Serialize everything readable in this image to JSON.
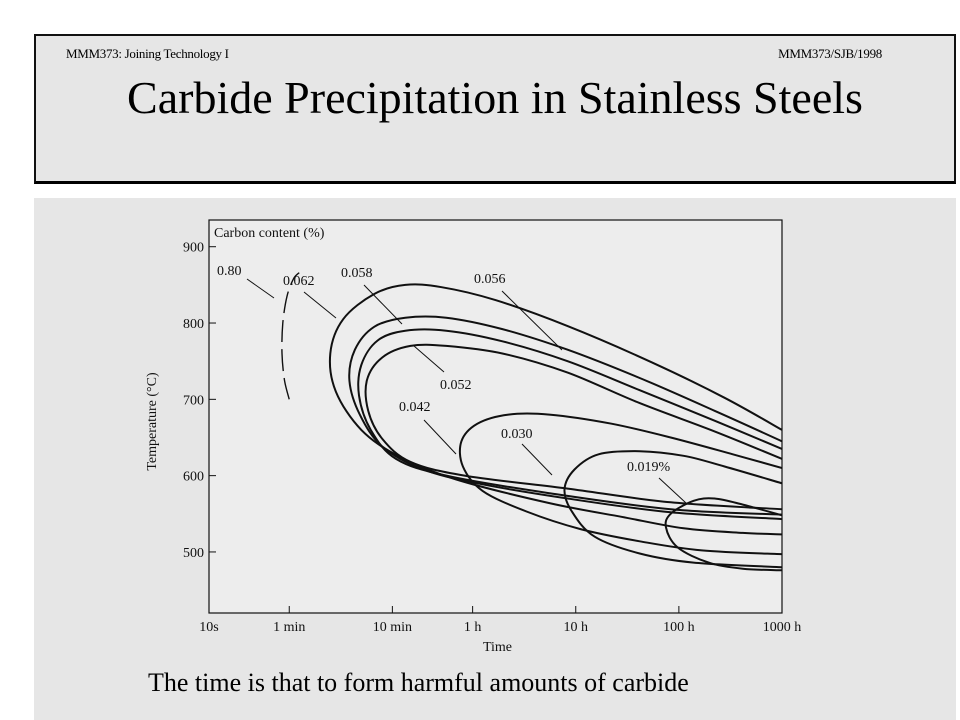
{
  "header": {
    "course_code": "MMM373: Joining Technology I",
    "slide_ref": "MMM373/SJB/1998",
    "title": "Carbide Precipitation in Stainless Steels"
  },
  "caption": "The time is that to form harmful amounts of carbide",
  "colors": {
    "panel_bg": "#e6e6e6",
    "plot_bg": "#ededed",
    "ink": "#111111"
  },
  "chart_data": {
    "type": "line",
    "title": "",
    "legend_title": "Carbon content (%)",
    "xlabel": "Time",
    "ylabel": "Temperature (°C)",
    "x_scale": "log",
    "x_unit": "seconds",
    "xlim": [
      10,
      3600000
    ],
    "ylim": [
      420,
      935
    ],
    "grid": false,
    "xticks": [
      {
        "value": 10,
        "label": "10s"
      },
      {
        "value": 60,
        "label": "1 min"
      },
      {
        "value": 600,
        "label": "10 min"
      },
      {
        "value": 3600,
        "label": "1 h"
      },
      {
        "value": 36000,
        "label": "10 h"
      },
      {
        "value": 360000,
        "label": "100 h"
      },
      {
        "value": 3600000,
        "label": "1000 h"
      }
    ],
    "yticks": [
      500,
      600,
      700,
      800,
      900
    ],
    "series": [
      {
        "name": "0.80",
        "style": "dashed",
        "points": [
          [
            60,
            700
          ],
          [
            54,
            725
          ],
          [
            51,
            760
          ],
          [
            52,
            800
          ],
          [
            57,
            835
          ],
          [
            66,
            858
          ],
          [
            75,
            866
          ]
        ]
      },
      {
        "name": "0.062",
        "points": [
          [
            3600000,
            660
          ],
          [
            1000000,
            702
          ],
          [
            200000,
            748
          ],
          [
            30000,
            796
          ],
          [
            6000,
            830
          ],
          [
            1800,
            847
          ],
          [
            800,
            850
          ],
          [
            400,
            838
          ],
          [
            200,
            805
          ],
          [
            150,
            760
          ],
          [
            170,
            710
          ],
          [
            300,
            660
          ],
          [
            700,
            625
          ],
          [
            2500,
            595
          ],
          [
            20000,
            564
          ],
          [
            100000,
            546
          ],
          [
            400000,
            531
          ],
          [
            1500000,
            525
          ],
          [
            3600000,
            523
          ]
        ]
      },
      {
        "name": "0.058",
        "points": [
          [
            3600000,
            645
          ],
          [
            800000,
            685
          ],
          [
            150000,
            728
          ],
          [
            30000,
            765
          ],
          [
            7000,
            792
          ],
          [
            2000,
            807
          ],
          [
            800,
            807
          ],
          [
            400,
            795
          ],
          [
            260,
            765
          ],
          [
            230,
            725
          ],
          [
            290,
            680
          ],
          [
            480,
            638
          ],
          [
            1200,
            608
          ],
          [
            4000,
            590
          ],
          [
            30000,
            570
          ],
          [
            300000,
            552
          ],
          [
            3600000,
            543
          ]
        ]
      },
      {
        "name": "0.056",
        "points": [
          [
            3600000,
            635
          ],
          [
            800000,
            672
          ],
          [
            150000,
            712
          ],
          [
            30000,
            750
          ],
          [
            7000,
            776
          ],
          [
            2000,
            790
          ],
          [
            800,
            790
          ],
          [
            430,
            777
          ],
          [
            300,
            745
          ],
          [
            285,
            705
          ],
          [
            370,
            660
          ],
          [
            650,
            622
          ],
          [
            2000,
            600
          ],
          [
            20000,
            577
          ],
          [
            300000,
            556
          ],
          [
            3600000,
            549
          ]
        ]
      },
      {
        "name": "0.052",
        "points": [
          [
            3600000,
            622
          ],
          [
            800000,
            658
          ],
          [
            150000,
            695
          ],
          [
            30000,
            735
          ],
          [
            7000,
            760
          ],
          [
            2000,
            770
          ],
          [
            900,
            770
          ],
          [
            480,
            755
          ],
          [
            340,
            725
          ],
          [
            350,
            685
          ],
          [
            480,
            648
          ],
          [
            900,
            618
          ],
          [
            3000,
            600
          ],
          [
            30000,
            583
          ],
          [
            300000,
            565
          ],
          [
            3600000,
            556
          ]
        ]
      },
      {
        "name": "0.042",
        "points": [
          [
            3600000,
            610
          ],
          [
            1200000,
            628
          ],
          [
            300000,
            650
          ],
          [
            80000,
            668
          ],
          [
            20000,
            680
          ],
          [
            8000,
            680
          ],
          [
            4000,
            668
          ],
          [
            2800,
            645
          ],
          [
            2900,
            612
          ],
          [
            4500,
            580
          ],
          [
            12000,
            553
          ],
          [
            40000,
            530
          ],
          [
            150000,
            514
          ],
          [
            600000,
            502
          ],
          [
            3600000,
            497
          ]
        ]
      },
      {
        "name": "0.030",
        "points": [
          [
            3600000,
            590
          ],
          [
            1000000,
            612
          ],
          [
            400000,
            626
          ],
          [
            150000,
            632
          ],
          [
            60000,
            628
          ],
          [
            35000,
            608
          ],
          [
            28000,
            582
          ],
          [
            33000,
            553
          ],
          [
            55000,
            520
          ],
          [
            150000,
            498
          ],
          [
            500000,
            486
          ],
          [
            3600000,
            480
          ]
        ]
      },
      {
        "name": "0.019%",
        "points": [
          [
            3600000,
            548
          ],
          [
            1500000,
            562
          ],
          [
            800000,
            570
          ],
          [
            500000,
            567
          ],
          [
            300000,
            550
          ],
          [
            270000,
            532
          ],
          [
            350000,
            506
          ],
          [
            700000,
            486
          ],
          [
            1500000,
            478
          ],
          [
            3600000,
            476
          ]
        ]
      }
    ],
    "annotations": [
      {
        "text": "0.80",
        "series": "0.80"
      },
      {
        "text": "0.062",
        "series": "0.062"
      },
      {
        "text": "0.058",
        "series": "0.058"
      },
      {
        "text": "0.056",
        "series": "0.056"
      },
      {
        "text": "0.052",
        "series": "0.052"
      },
      {
        "text": "0.042",
        "series": "0.042"
      },
      {
        "text": "0.030",
        "series": "0.030"
      },
      {
        "text": "0.019%",
        "series": "0.019%"
      }
    ]
  }
}
